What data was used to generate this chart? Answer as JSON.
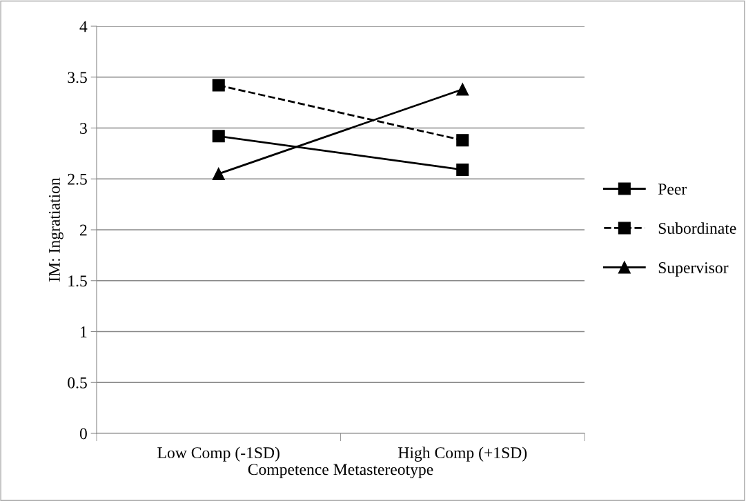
{
  "chart_data": {
    "type": "line",
    "xlabel": "Competence Metastereotype",
    "ylabel": "IM: Ingratiation",
    "categories": [
      "Low Comp (-1SD)",
      "High Comp (+1SD)"
    ],
    "series": [
      {
        "name": "Peer",
        "color": "#000000",
        "values": [
          2.92,
          2.59
        ],
        "marker": "square",
        "line_style": "solid"
      },
      {
        "name": "Subordinate",
        "color": "#000000",
        "values": [
          3.42,
          2.88
        ],
        "marker": "square",
        "line_style": "dashed"
      },
      {
        "name": "Supervisor",
        "color": "#000000",
        "values": [
          2.55,
          3.38
        ],
        "marker": "triangle",
        "line_style": "solid"
      }
    ],
    "ylim": [
      0,
      4
    ],
    "yticks": [
      0,
      0.5,
      1,
      1.5,
      2,
      2.5,
      3,
      3.5,
      4
    ],
    "grid": "y",
    "legend": "right"
  }
}
